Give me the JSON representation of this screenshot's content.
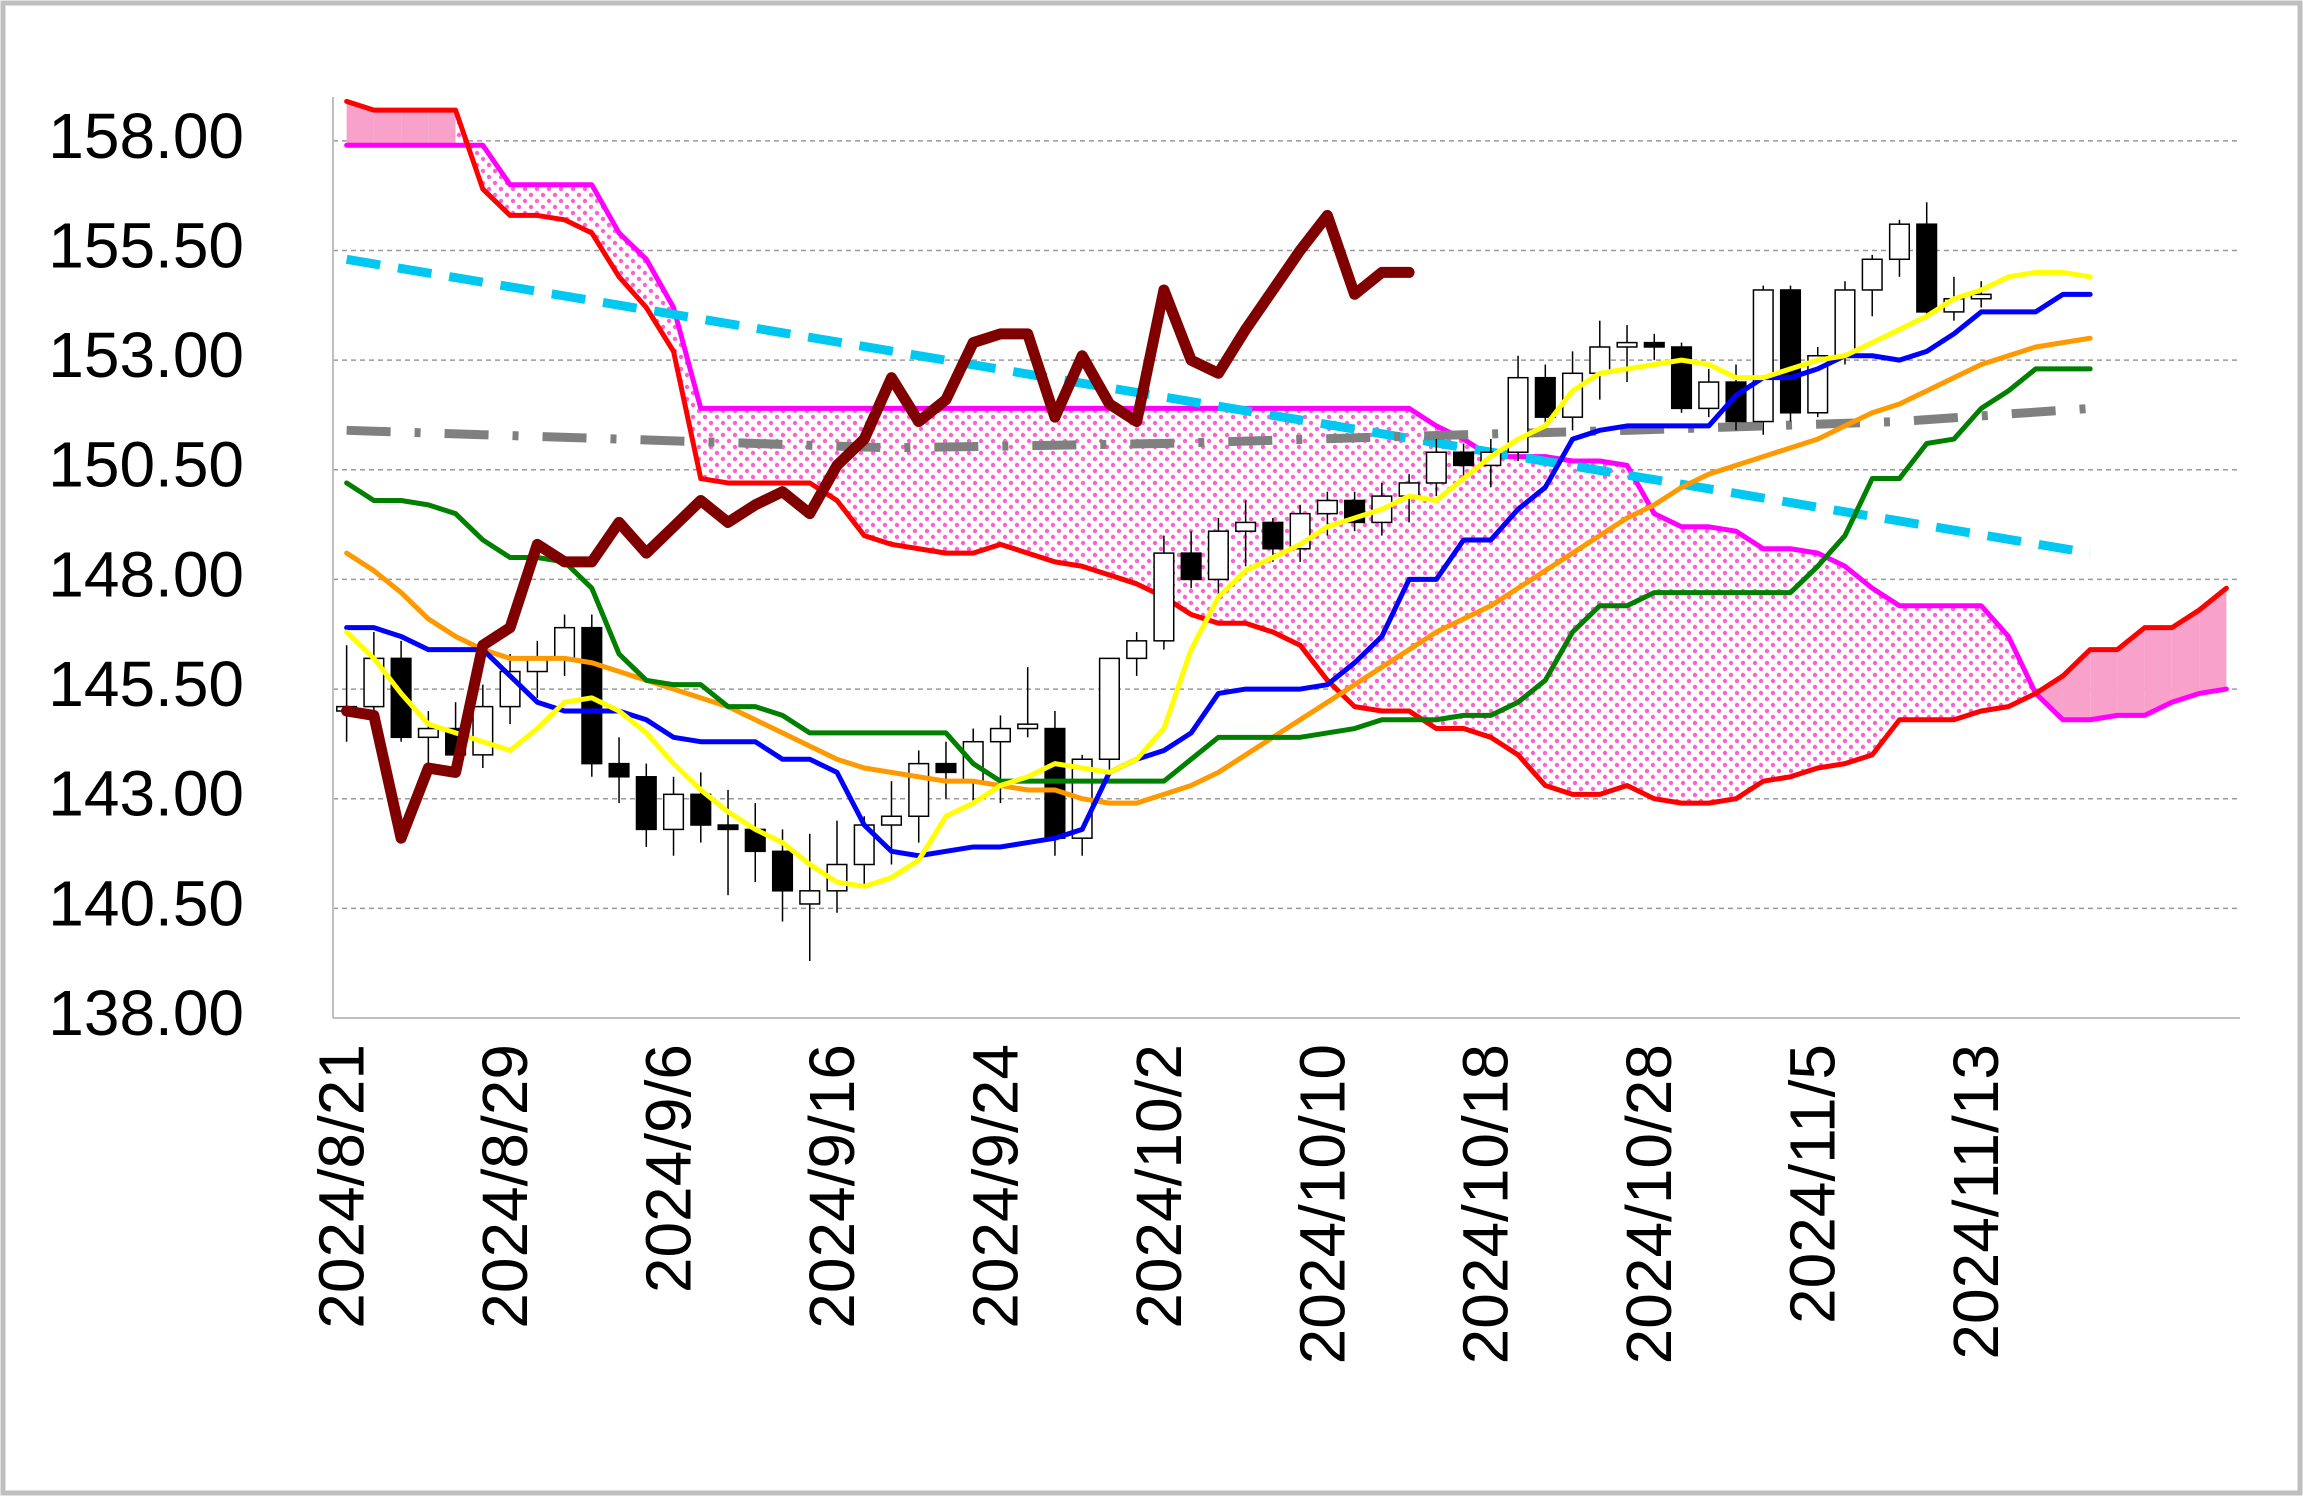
{
  "chart_data": {
    "type": "ichimoku",
    "categories": [
      "2024/8/21",
      null,
      null,
      null,
      null,
      null,
      "2024/8/29",
      null,
      null,
      null,
      null,
      null,
      "2024/9/6",
      null,
      null,
      null,
      null,
      null,
      "2024/9/16",
      null,
      null,
      null,
      null,
      null,
      "2024/9/24",
      null,
      null,
      null,
      null,
      null,
      "2024/10/2",
      null,
      null,
      null,
      null,
      null,
      "2024/10/10",
      null,
      null,
      null,
      null,
      null,
      "2024/10/18",
      null,
      null,
      null,
      null,
      null,
      "2024/10/28",
      null,
      null,
      null,
      null,
      null,
      "2024/11/5",
      null,
      null,
      null,
      null,
      null,
      "2024/11/13",
      null,
      null,
      null,
      null,
      null,
      null,
      null,
      null,
      null
    ],
    "ylim": [
      138,
      159
    ],
    "yticks": [
      {
        "value": 138,
        "label": "138.00"
      },
      {
        "value": 140.5,
        "label": "140.50"
      },
      {
        "value": 143,
        "label": "143.00"
      },
      {
        "value": 145.5,
        "label": "145.50"
      },
      {
        "value": 148,
        "label": "148.00"
      },
      {
        "value": 150.5,
        "label": "150.50"
      },
      {
        "value": 153,
        "label": "153.00"
      },
      {
        "value": 155.5,
        "label": "155.50"
      },
      {
        "value": 158,
        "label": "158.00"
      }
    ],
    "grid": true,
    "cloud": {
      "bull_fill": "#f7a1cb",
      "bear_fill": "#ff5fd0",
      "span_a": {
        "color": "#ff0000",
        "values": [
          158.9,
          158.7,
          158.7,
          158.7,
          158.7,
          156.9,
          156.3,
          156.3,
          156.2,
          155.9,
          154.9,
          154.2,
          153.2,
          150.3,
          150.2,
          150.2,
          150.2,
          150.2,
          149.8,
          149.0,
          148.8,
          148.7,
          148.6,
          148.6,
          148.8,
          148.6,
          148.4,
          148.3,
          148.1,
          147.9,
          147.6,
          147.2,
          147.0,
          147.0,
          146.8,
          146.5,
          145.7,
          145.1,
          145.0,
          145.0,
          144.6,
          144.6,
          144.4,
          144.0,
          143.3,
          143.1,
          143.1,
          143.3,
          143.0,
          142.9,
          142.9,
          143.0,
          143.4,
          143.5,
          143.7,
          143.8,
          144.0,
          144.8,
          144.8,
          144.8,
          145.0,
          145.1,
          145.4,
          145.8,
          146.4,
          146.4,
          146.9,
          146.9,
          147.3,
          147.8
        ]
      },
      "span_b": {
        "color": "#ff00ff",
        "values": [
          157.9,
          157.9,
          157.9,
          157.9,
          157.9,
          157.9,
          157.0,
          157.0,
          157.0,
          157.0,
          155.9,
          155.3,
          154.2,
          151.9,
          151.9,
          151.9,
          151.9,
          151.9,
          151.9,
          151.9,
          151.9,
          151.9,
          151.9,
          151.9,
          151.9,
          151.9,
          151.9,
          151.9,
          151.9,
          151.9,
          151.9,
          151.9,
          151.9,
          151.9,
          151.9,
          151.9,
          151.9,
          151.9,
          151.9,
          151.9,
          151.5,
          151.2,
          150.8,
          150.8,
          150.8,
          150.7,
          150.7,
          150.6,
          149.5,
          149.2,
          149.2,
          149.1,
          148.7,
          148.7,
          148.6,
          148.3,
          147.8,
          147.4,
          147.4,
          147.4,
          147.4,
          146.7,
          145.4,
          144.8,
          144.8,
          144.9,
          144.9,
          145.2,
          145.4,
          145.5
        ]
      }
    },
    "trendlines": [
      {
        "color": "#00c8f0",
        "style": "dashed",
        "x": [
          0,
          64
        ],
        "y": [
          155.3,
          148.6
        ]
      },
      {
        "color": "#808080",
        "style": "dashdot",
        "x": [
          0,
          5,
          20,
          30,
          41,
          47,
          57,
          64
        ],
        "y": [
          151.4,
          151.3,
          151.0,
          151.1,
          151.3,
          151.4,
          151.6,
          151.9
        ]
      }
    ],
    "candles": {
      "up_color": "#ffffff",
      "down_color": "#000000",
      "open": [
        145.0,
        145.1,
        146.2,
        144.4,
        144.6,
        144.0,
        145.1,
        145.9,
        146.2,
        146.9,
        143.8,
        143.5,
        142.3,
        143.1,
        142.4,
        142.3,
        141.8,
        140.6,
        140.9,
        141.5,
        142.4,
        142.6,
        143.8,
        143.4,
        144.3,
        144.6,
        144.6,
        142.1,
        143.9,
        146.2,
        146.6,
        148.6,
        148.0,
        149.1,
        149.3,
        148.7,
        149.5,
        149.8,
        149.3,
        149.9,
        150.2,
        150.9,
        150.6,
        150.9,
        152.6,
        151.7,
        152.7,
        153.3,
        153.4,
        153.3,
        151.9,
        152.5,
        151.6,
        154.6,
        151.8,
        153.1,
        154.6,
        155.3,
        156.1,
        154.1,
        154.4,
        null,
        null,
        null,
        null,
        null,
        null,
        null,
        null,
        null
      ],
      "high": [
        146.5,
        146.8,
        146.6,
        145.0,
        145.2,
        145.6,
        146.3,
        146.6,
        147.2,
        147.2,
        144.4,
        143.8,
        143.5,
        143.6,
        143.2,
        142.9,
        142.3,
        142.2,
        142.5,
        142.6,
        143.4,
        144.1,
        144.3,
        144.6,
        144.9,
        146.0,
        145.0,
        144.0,
        146.0,
        146.8,
        149.0,
        149.1,
        149.4,
        149.8,
        149.4,
        149.7,
        150.0,
        150.0,
        150.2,
        150.4,
        151.2,
        151.1,
        151.2,
        153.1,
        152.9,
        153.2,
        153.9,
        153.8,
        153.6,
        153.4,
        152.8,
        152.9,
        154.7,
        154.7,
        153.3,
        154.8,
        155.4,
        156.2,
        156.6,
        154.9,
        154.8,
        null,
        null,
        null,
        null,
        null,
        null,
        null,
        null,
        null
      ],
      "low": [
        144.3,
        144.8,
        144.3,
        143.8,
        143.7,
        143.7,
        144.7,
        145.3,
        145.8,
        143.5,
        142.9,
        141.9,
        141.7,
        142.0,
        140.8,
        141.1,
        140.2,
        139.3,
        140.4,
        141.0,
        141.5,
        142.0,
        143.0,
        142.9,
        142.9,
        144.4,
        141.7,
        141.7,
        143.6,
        145.8,
        146.4,
        147.8,
        147.6,
        148.3,
        148.4,
        148.4,
        149.0,
        149.1,
        149.0,
        149.3,
        149.9,
        150.3,
        150.1,
        150.7,
        151.5,
        151.4,
        152.1,
        152.5,
        153.0,
        151.8,
        151.7,
        151.4,
        151.3,
        151.6,
        151.7,
        152.9,
        154.0,
        154.9,
        154.0,
        153.9,
        154.2,
        null,
        null,
        null,
        null,
        null,
        null,
        null,
        null,
        null
      ],
      "close": [
        145.1,
        146.2,
        144.4,
        144.6,
        144.0,
        145.1,
        145.9,
        146.2,
        146.9,
        143.8,
        143.5,
        142.3,
        143.1,
        142.4,
        142.3,
        141.8,
        140.9,
        140.9,
        141.5,
        142.4,
        142.6,
        143.8,
        143.6,
        144.3,
        144.6,
        144.7,
        142.1,
        143.9,
        146.2,
        146.6,
        148.6,
        148.0,
        149.1,
        149.3,
        148.7,
        149.5,
        149.8,
        149.3,
        149.9,
        150.2,
        150.9,
        150.6,
        150.9,
        152.6,
        151.7,
        152.7,
        153.3,
        153.4,
        153.3,
        151.9,
        152.5,
        151.6,
        154.6,
        151.8,
        153.1,
        154.6,
        155.3,
        156.1,
        154.1,
        154.4,
        154.5,
        null,
        null,
        null,
        null,
        null,
        null,
        null,
        null,
        null
      ]
    },
    "lines": [
      {
        "color": "#ff9900",
        "style": "solid",
        "values": [
          148.6,
          148.2,
          147.7,
          147.1,
          146.7,
          146.4,
          146.2,
          146.2,
          146.2,
          146.1,
          145.9,
          145.7,
          145.5,
          145.3,
          145.1,
          144.8,
          144.5,
          144.2,
          143.9,
          143.7,
          143.6,
          143.5,
          143.4,
          143.4,
          143.3,
          143.2,
          143.2,
          143.0,
          142.9,
          142.9,
          143.1,
          143.3,
          143.6,
          144.0,
          144.4,
          144.8,
          145.2,
          145.6,
          146.0,
          146.4,
          146.8,
          147.1,
          147.4,
          147.8,
          148.2,
          148.6,
          149.0,
          149.4,
          149.7,
          150.1,
          150.4,
          150.6,
          150.8,
          151.0,
          151.2,
          151.5,
          151.8,
          152.0,
          152.3,
          152.6,
          152.9,
          153.1,
          153.3,
          153.4,
          153.5,
          null,
          null,
          null,
          null,
          null
        ]
      },
      {
        "color": "#007f00",
        "style": "solid",
        "values": [
          150.2,
          149.8,
          149.8,
          149.7,
          149.5,
          148.9,
          148.5,
          148.5,
          148.4,
          147.8,
          146.3,
          145.7,
          145.6,
          145.6,
          145.1,
          145.1,
          144.9,
          144.5,
          144.5,
          144.5,
          144.5,
          144.5,
          144.5,
          143.8,
          143.4,
          143.4,
          143.4,
          143.4,
          143.4,
          143.4,
          143.4,
          143.9,
          144.4,
          144.4,
          144.4,
          144.4,
          144.5,
          144.6,
          144.8,
          144.8,
          144.8,
          144.9,
          144.9,
          145.2,
          145.7,
          146.8,
          147.4,
          147.4,
          147.7,
          147.7,
          147.7,
          147.7,
          147.7,
          147.7,
          148.3,
          149.0,
          150.3,
          150.3,
          151.1,
          151.2,
          151.9,
          152.3,
          152.8,
          152.8,
          152.8,
          null,
          null,
          null,
          null,
          null
        ]
      },
      {
        "color": "#0000ff",
        "style": "solid",
        "values": [
          146.9,
          146.9,
          146.7,
          146.4,
          146.4,
          146.4,
          145.8,
          145.2,
          145.0,
          145.0,
          145.0,
          144.8,
          144.4,
          144.3,
          144.3,
          144.3,
          143.9,
          143.9,
          143.6,
          142.4,
          141.8,
          141.7,
          141.8,
          141.9,
          141.9,
          142.0,
          142.1,
          142.3,
          143.6,
          143.9,
          144.1,
          144.5,
          145.4,
          145.5,
          145.5,
          145.5,
          145.6,
          146.1,
          146.7,
          148.0,
          148.0,
          148.9,
          148.9,
          149.6,
          150.1,
          151.2,
          151.4,
          151.5,
          151.5,
          151.5,
          151.5,
          152.2,
          152.6,
          152.6,
          152.8,
          153.1,
          153.1,
          153.0,
          153.2,
          153.6,
          154.1,
          154.1,
          154.1,
          154.5,
          154.5,
          null,
          null,
          null,
          null,
          null
        ]
      },
      {
        "color": "#ffff00",
        "style": "solid",
        "values": [
          146.8,
          146.2,
          145.4,
          144.7,
          144.5,
          144.3,
          144.1,
          144.6,
          145.2,
          145.3,
          145.0,
          144.5,
          143.8,
          143.2,
          142.7,
          142.3,
          142.0,
          141.5,
          141.1,
          141.0,
          141.2,
          141.6,
          142.6,
          142.9,
          143.3,
          143.5,
          143.8,
          143.7,
          143.6,
          143.9,
          144.6,
          146.4,
          147.6,
          148.2,
          148.5,
          148.8,
          149.2,
          149.4,
          149.6,
          149.9,
          149.8,
          150.3,
          150.8,
          151.2,
          151.5,
          152.3,
          152.7,
          152.8,
          152.9,
          153.0,
          152.9,
          152.6,
          152.6,
          152.8,
          153.0,
          153.1,
          153.4,
          153.7,
          154.0,
          154.4,
          154.6,
          154.9,
          155.0,
          155.0,
          154.9,
          null,
          null,
          null,
          null,
          null
        ]
      },
      {
        "color": "#800000",
        "style": "thick",
        "values": [
          145.0,
          144.9,
          142.1,
          143.7,
          143.6,
          146.5,
          146.9,
          148.8,
          148.4,
          148.4,
          149.3,
          148.6,
          149.2,
          149.8,
          149.3,
          149.7,
          150.0,
          149.5,
          150.6,
          151.2,
          152.6,
          151.6,
          152.1,
          153.4,
          153.6,
          153.6,
          151.7,
          153.1,
          152.0,
          151.6,
          154.6,
          153.0,
          152.7,
          153.7,
          154.6,
          155.5,
          156.3,
          154.5,
          155.0,
          155.0,
          null,
          null,
          null,
          null,
          null,
          null,
          null,
          null,
          null,
          null,
          null,
          null,
          null,
          null,
          null,
          null,
          null,
          null,
          null,
          null,
          null,
          null,
          null,
          null,
          null,
          null,
          null,
          null,
          null,
          null
        ]
      }
    ]
  }
}
